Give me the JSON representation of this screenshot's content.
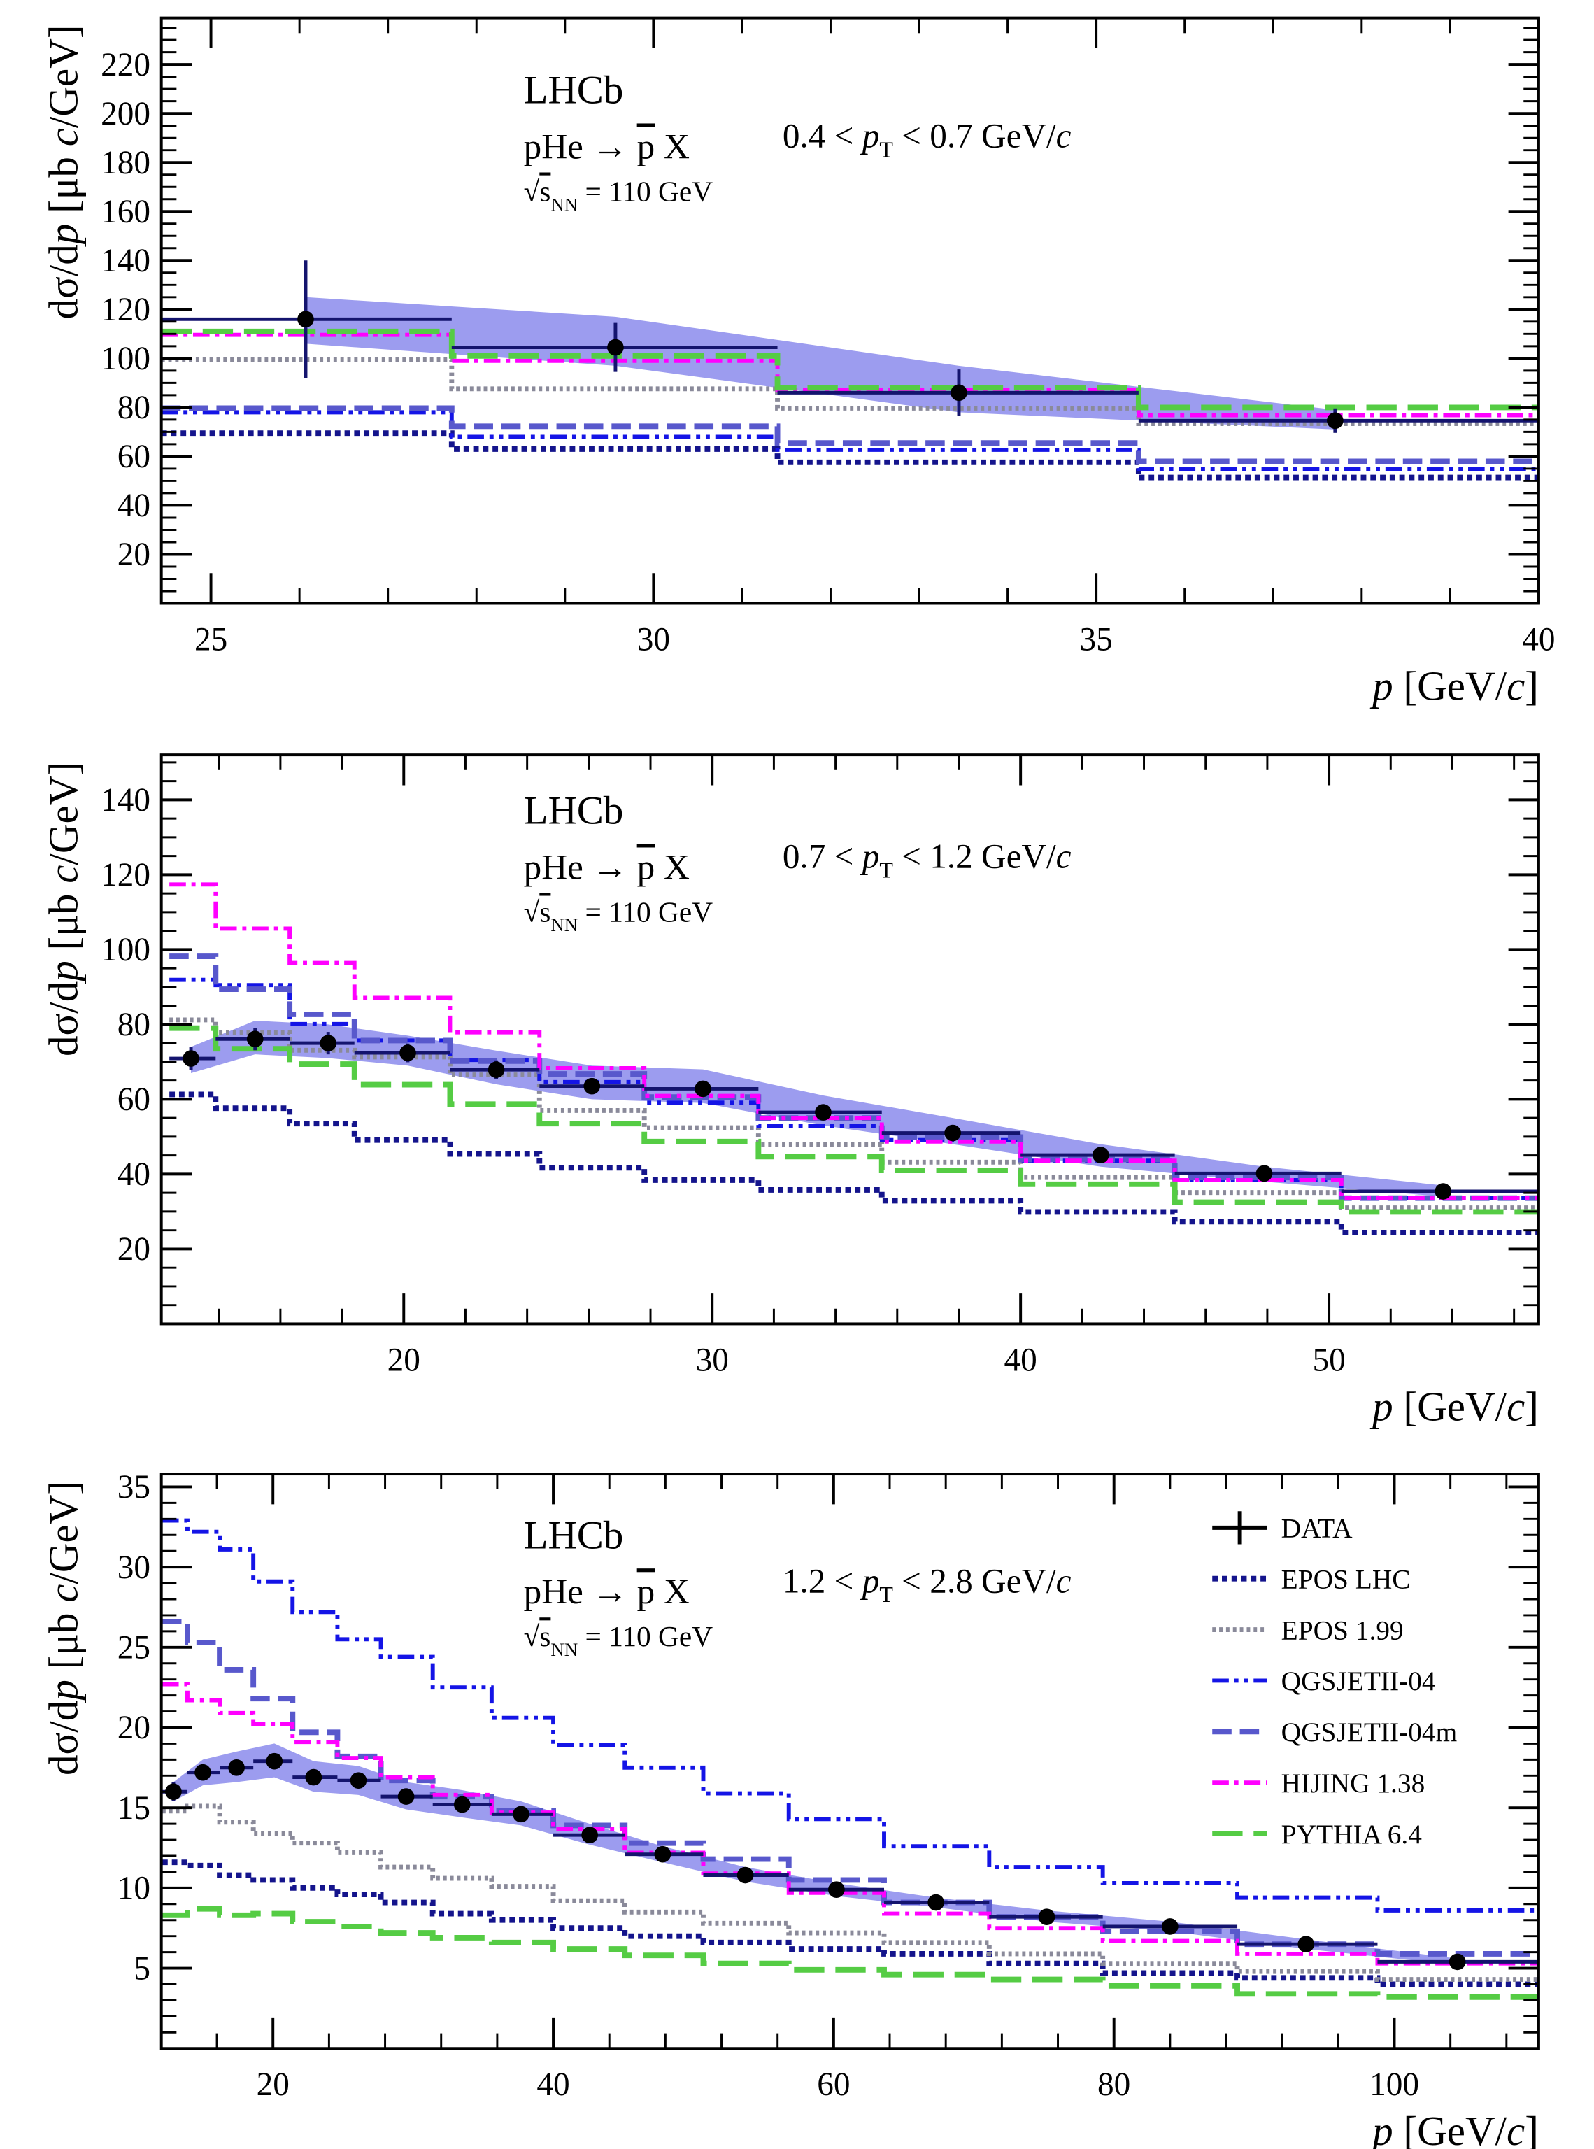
{
  "chart_data": [
    {
      "type": "histogram",
      "annotations": {
        "experiment": "LHCb",
        "reaction": [
          "pHe  →  ",
          "p",
          " X"
        ],
        "energy": [
          "√",
          "s",
          "NN",
          " = 110 GeV"
        ],
        "pt_range": [
          "0.4 <  ",
          "p",
          "T",
          " < 0.7 GeV/",
          "c"
        ]
      },
      "y_label": [
        "dσ/d",
        "p",
        " [μb  ",
        "c",
        "/GeV]"
      ],
      "x_label": [
        "p",
        "  [GeV/",
        "c",
        "]"
      ],
      "bins": [
        24.44,
        27.72,
        31.4,
        35.48,
        40
      ],
      "data": {
        "name": "DATA",
        "color": "#000000",
        "error_color": "#14146e",
        "band_color": "#7b7bea",
        "x": [
          26.07,
          29.57,
          33.45,
          37.7
        ],
        "values": [
          116,
          104.5,
          86,
          74.6
        ],
        "errors": [
          24,
          10,
          9.5,
          5
        ],
        "band_low": [
          106,
          97,
          78,
          71
        ],
        "band_high": [
          125,
          117,
          97,
          79
        ]
      },
      "series": [
        {
          "name": "EPOS LHC",
          "color": "#14148c",
          "dash": "dense-dotted",
          "values": [
            69.5,
            63,
            57.6,
            51.4
          ]
        },
        {
          "name": "EPOS 1.99",
          "color": "#8a8a9a",
          "dash": "dotted",
          "values": [
            99.4,
            87.6,
            79.7,
            73.4
          ]
        },
        {
          "name": "QGSJETII-04",
          "color": "#1414e6",
          "dash": "dash-dot-dot",
          "values": [
            78,
            68,
            62.7,
            54.8
          ]
        },
        {
          "name": "QGSJETII-04m",
          "color": "#5858cc",
          "dash": "dashed",
          "values": [
            79.7,
            72.3,
            65.5,
            58
          ]
        },
        {
          "name": "HIJING 1.38",
          "color": "#ff00ff",
          "dash": "dash-dot",
          "values": [
            109.6,
            99,
            87,
            76.8
          ]
        },
        {
          "name": "PYTHIA 6.4",
          "color": "#55cc44",
          "dash": "long-dash",
          "values": [
            111,
            101,
            88,
            80
          ]
        }
      ],
      "xlim": [
        24.44,
        40
      ],
      "xticks": [
        25,
        30,
        35,
        40
      ],
      "ylim": [
        0,
        239
      ],
      "yticks": [
        20,
        40,
        60,
        80,
        100,
        120,
        140,
        160,
        180,
        200,
        220
      ]
    },
    {
      "type": "histogram",
      "annotations": {
        "experiment": "LHCb",
        "reaction": [
          "pHe  →  ",
          "p",
          " X"
        ],
        "energy": [
          "√",
          "s",
          "NN",
          " = 110 GeV"
        ],
        "pt_range": [
          "0.7 <  ",
          "p",
          "T",
          " < 1.2 GeV/",
          "c"
        ]
      },
      "y_label": [
        "dσ/d",
        "p",
        " [μb  ",
        "c",
        "/GeV]"
      ],
      "x_label": [
        "p",
        "  [GeV/",
        "c",
        "]"
      ],
      "bins": [
        12.4,
        13.9,
        16.3,
        18.4,
        21.5,
        24.4,
        27.8,
        31.5,
        35.5,
        40,
        45,
        50.4,
        56.8
      ],
      "data": {
        "name": "DATA",
        "color": "#000000",
        "error_color": "#14146e",
        "band_color": "#7b7bea",
        "x": [
          13.1,
          15.18,
          17.55,
          20.13,
          23.0,
          26.1,
          29.7,
          33.6,
          37.8,
          42.6,
          47.9,
          53.7
        ],
        "values": [
          70.9,
          76.1,
          75.0,
          72.4,
          67.9,
          63.5,
          62.8,
          56.5,
          51.0,
          45.1,
          40.2,
          35.4
        ],
        "errors": [
          3,
          3,
          3,
          2.5,
          2.5,
          2,
          2,
          2,
          1.5,
          1.5,
          1.5,
          1
        ],
        "band_low": [
          67,
          72,
          71,
          69,
          64,
          60,
          59,
          53,
          48,
          42,
          38,
          34
        ],
        "band_high": [
          74,
          81,
          80,
          77,
          73,
          69,
          68,
          61,
          55,
          48,
          42,
          37
        ]
      },
      "series": [
        {
          "name": "EPOS LHC",
          "color": "#14148c",
          "dash": "dense-dotted",
          "values": [
            61.3,
            57.6,
            53.5,
            49.1,
            45.4,
            41.7,
            38.4,
            35.8,
            32.9,
            29.9,
            27.3,
            24.4
          ]
        },
        {
          "name": "EPOS 1.99",
          "color": "#8a8a9a",
          "dash": "dotted",
          "values": [
            81.2,
            77.9,
            73.1,
            71.3,
            66.5,
            57,
            52.4,
            48.0,
            43.2,
            39.1,
            35.1,
            31.0
          ]
        },
        {
          "name": "QGSJETII-04",
          "color": "#1414e6",
          "dash": "dash-dot-dot",
          "values": [
            91.9,
            90.5,
            80.1,
            75.7,
            70.5,
            64.6,
            59.1,
            52.8,
            49.1,
            43.6,
            38.4,
            33.6
          ]
        },
        {
          "name": "QGSJETII-04m",
          "color": "#5858cc",
          "dash": "dashed",
          "values": [
            98.2,
            89.4,
            82.7,
            75.7,
            70.2,
            66.8,
            60.6,
            55.0,
            49.9,
            43.9,
            39.1,
            33.6
          ]
        },
        {
          "name": "HIJING 1.38",
          "color": "#ff00ff",
          "dash": "dash-dot",
          "values": [
            117.4,
            105.6,
            96.4,
            87.1,
            77.9,
            68.3,
            60.9,
            55.0,
            48.7,
            43.6,
            38.4,
            33.6
          ]
        },
        {
          "name": "PYTHIA 6.4",
          "color": "#55cc44",
          "dash": "long-dash",
          "values": [
            79,
            73.5,
            69.4,
            63.9,
            58.7,
            53.5,
            48.7,
            44.7,
            41.0,
            37.3,
            32.5,
            29.9
          ]
        }
      ],
      "xlim": [
        12.14,
        56.8
      ],
      "xticks": [
        20,
        30,
        40,
        50
      ],
      "ylim": [
        0,
        152
      ],
      "yticks": [
        20,
        40,
        60,
        80,
        100,
        120,
        140
      ]
    },
    {
      "type": "histogram",
      "annotations": {
        "experiment": "LHCb",
        "reaction": [
          "pHe  →  ",
          "p",
          " X"
        ],
        "energy": [
          "√",
          "s",
          "NN",
          " = 110 GeV"
        ],
        "pt_range": [
          "1.2 <  ",
          "p",
          "T",
          " < 2.8 GeV/",
          "c"
        ]
      },
      "y_label": [
        "dσ/d",
        "p",
        " [μb  ",
        "c",
        "/GeV]"
      ],
      "x_label": [
        "p",
        "  [GeV/",
        "c",
        "]"
      ],
      "bins": [
        12.1,
        13.9,
        16.2,
        18.6,
        21.4,
        24.6,
        27.7,
        31.4,
        35.6,
        40.0,
        45.1,
        50.7,
        56.8,
        63.6,
        71.1,
        79.2,
        88.8,
        98.8,
        110.3
      ],
      "data": {
        "name": "DATA",
        "color": "#000000",
        "error_color": "#14146e",
        "band_color": "#7b7bea",
        "x": [
          12.9,
          15.0,
          17.4,
          20.1,
          22.9,
          26.1,
          29.5,
          33.5,
          37.7,
          42.6,
          47.8,
          53.7,
          60.2,
          67.3,
          75.2,
          84.0,
          93.7,
          104.5
        ],
        "values": [
          16.0,
          17.2,
          17.5,
          17.9,
          16.9,
          16.7,
          15.7,
          15.2,
          14.6,
          13.3,
          12.1,
          10.8,
          9.9,
          9.1,
          8.2,
          7.6,
          6.5,
          5.4
        ],
        "errors": [
          0.6,
          0.5,
          0.5,
          0.5,
          0.5,
          0.5,
          0.4,
          0.4,
          0.4,
          0.4,
          0.3,
          0.3,
          0.3,
          0.3,
          0.3,
          0.2,
          0.2,
          0.2
        ],
        "band_low": [
          15.4,
          16.4,
          16.6,
          16.9,
          16.0,
          15.8,
          14.9,
          14.4,
          13.9,
          12.7,
          11.6,
          10.4,
          9.5,
          8.8,
          7.9,
          7.3,
          6.2,
          5.2
        ],
        "band_high": [
          16.6,
          18.0,
          18.5,
          19.0,
          17.9,
          17.6,
          16.6,
          16.1,
          15.4,
          14.0,
          12.6,
          11.3,
          10.3,
          9.4,
          8.6,
          7.9,
          6.8,
          5.6
        ]
      },
      "series": [
        {
          "name": "EPOS LHC",
          "color": "#14148c",
          "dash": "dense-dotted",
          "values": [
            11.6,
            11.4,
            10.8,
            10.5,
            10.0,
            9.6,
            9.1,
            8.4,
            8.0,
            7.5,
            7.0,
            6.6,
            6.2,
            5.9,
            5.3,
            4.7,
            4.4,
            4.0
          ]
        },
        {
          "name": "EPOS 1.99",
          "color": "#8a8a9a",
          "dash": "dotted",
          "values": [
            14.8,
            15.1,
            14.1,
            13.4,
            12.8,
            12.2,
            11.3,
            10.6,
            10.1,
            9.2,
            8.5,
            7.8,
            7.2,
            6.6,
            5.9,
            5.3,
            4.8,
            4.3
          ]
        },
        {
          "name": "QGSJETII-04",
          "color": "#1414e6",
          "dash": "dash-dot-dot",
          "values": [
            32.9,
            32.2,
            31.1,
            29.1,
            27.2,
            25.5,
            24.4,
            22.5,
            20.6,
            18.9,
            17.5,
            15.9,
            14.3,
            12.6,
            11.3,
            10.3,
            9.4,
            8.6
          ]
        },
        {
          "name": "QGSJETII-04m",
          "color": "#5858cc",
          "dash": "dashed",
          "values": [
            26.6,
            25.3,
            23.6,
            21.8,
            19.7,
            18.2,
            16.7,
            15.7,
            14.8,
            13.9,
            12.8,
            11.8,
            10.5,
            9.1,
            8.2,
            7.3,
            6.5,
            5.9
          ]
        },
        {
          "name": "HIJING 1.38",
          "color": "#ff00ff",
          "dash": "dash-dot",
          "values": [
            22.7,
            21.7,
            20.9,
            20.2,
            19.1,
            18.1,
            16.9,
            15.8,
            14.7,
            13.7,
            12.2,
            10.9,
            9.7,
            8.4,
            7.5,
            6.7,
            5.9,
            5.3
          ]
        },
        {
          "name": "PYTHIA 6.4",
          "color": "#55cc44",
          "dash": "long-dash",
          "values": [
            8.3,
            8.7,
            8.3,
            8.4,
            7.9,
            7.6,
            7.2,
            6.9,
            6.6,
            6.2,
            5.8,
            5.3,
            4.9,
            4.6,
            4.3,
            3.9,
            3.4,
            3.2
          ]
        }
      ],
      "xlim": [
        12.04,
        110.3
      ],
      "xticks": [
        20,
        40,
        60,
        80,
        100
      ],
      "ylim": [
        0,
        35.8
      ],
      "yticks": [
        5,
        10,
        15,
        20,
        25,
        30,
        35
      ],
      "legend": "upper right"
    }
  ]
}
